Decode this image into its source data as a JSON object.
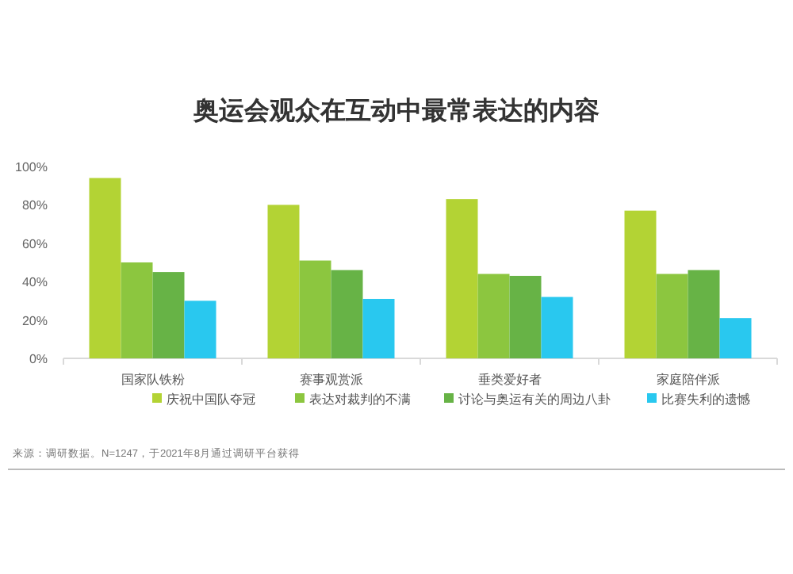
{
  "chart_data": {
    "type": "bar",
    "title": "奥运会观众在互动中最常表达的内容",
    "categories": [
      "国家队铁粉",
      "赛事观赏派",
      "垂类爱好者",
      "家庭陪伴派"
    ],
    "series": [
      {
        "name": "庆祝中国队夺冠",
        "color": "#b3d334",
        "values": [
          94,
          80,
          83,
          77
        ]
      },
      {
        "name": "表达对裁判的不满",
        "color": "#8cc63f",
        "values": [
          50,
          51,
          44,
          44
        ]
      },
      {
        "name": "讨论与奥运有关的周边八卦",
        "color": "#67b346",
        "values": [
          45,
          46,
          43,
          46
        ]
      },
      {
        "name": "比赛失利的遗憾",
        "color": "#29c8ef",
        "values": [
          30,
          31,
          32,
          21
        ]
      }
    ],
    "ylim": [
      0,
      100
    ],
    "yticks": [
      {
        "value": 0,
        "label": "0%"
      },
      {
        "value": 20,
        "label": "20%"
      },
      {
        "value": 40,
        "label": "40%"
      },
      {
        "value": 60,
        "label": "60%"
      },
      {
        "value": 80,
        "label": "80%"
      },
      {
        "value": 100,
        "label": "100%"
      }
    ],
    "grid": false,
    "legend": "bottom",
    "annotations": [
      "来源：调研数据。N=1247，于2021年8月通过调研平台获得"
    ]
  }
}
